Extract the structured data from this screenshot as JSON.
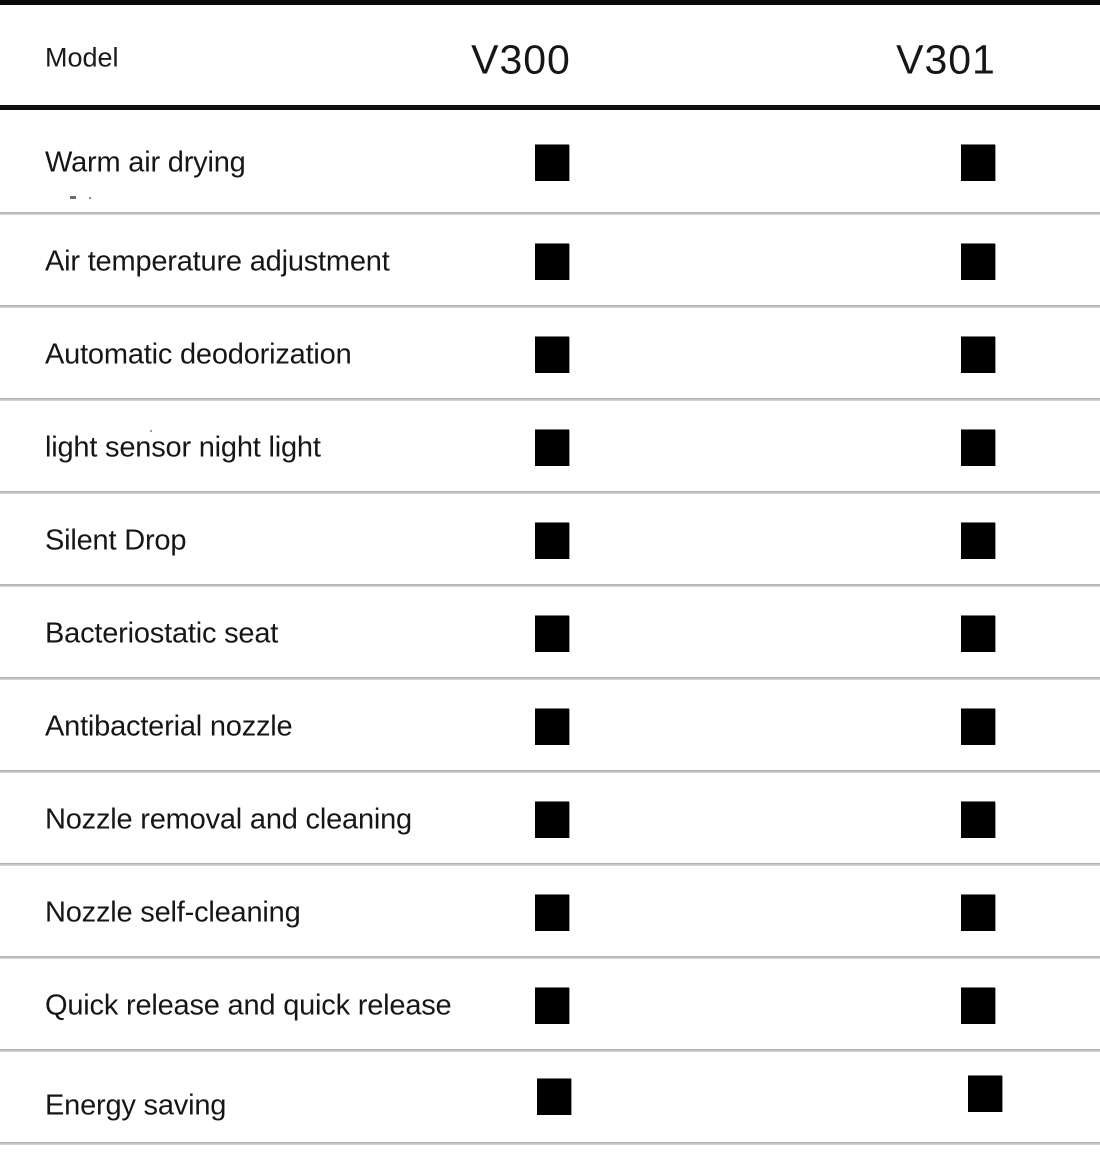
{
  "table": {
    "header": {
      "model_label": "Model",
      "columns": [
        "V300",
        "V301"
      ]
    },
    "symbol": {
      "name": "filled-square",
      "meaning": "feature present",
      "color": "#000000"
    },
    "rows": [
      {
        "feature": "Warm air drying",
        "v300": true,
        "v301": true
      },
      {
        "feature": "Air temperature adjustment",
        "v300": true,
        "v301": true
      },
      {
        "feature": "Automatic deodorization",
        "v300": true,
        "v301": true
      },
      {
        "feature": "light sensor night light",
        "v300": true,
        "v301": true
      },
      {
        "feature": "Silent Drop",
        "v300": true,
        "v301": true
      },
      {
        "feature": "Bacteriostatic seat",
        "v300": true,
        "v301": true
      },
      {
        "feature": "Antibacterial nozzle",
        "v300": true,
        "v301": true
      },
      {
        "feature": "Nozzle removal and cleaning",
        "v300": true,
        "v301": true
      },
      {
        "feature": "Nozzle self-cleaning",
        "v300": true,
        "v301": true
      },
      {
        "feature": "Quick release and quick release",
        "v300": true,
        "v301": true
      },
      {
        "feature": "Energy saving",
        "v300": true,
        "v301": true
      }
    ],
    "colors": {
      "text": "#161616",
      "square": "#000000",
      "row_separator": "#bcbcbc",
      "header_rule": "#101010",
      "top_bar": "#0a0a0a"
    }
  }
}
